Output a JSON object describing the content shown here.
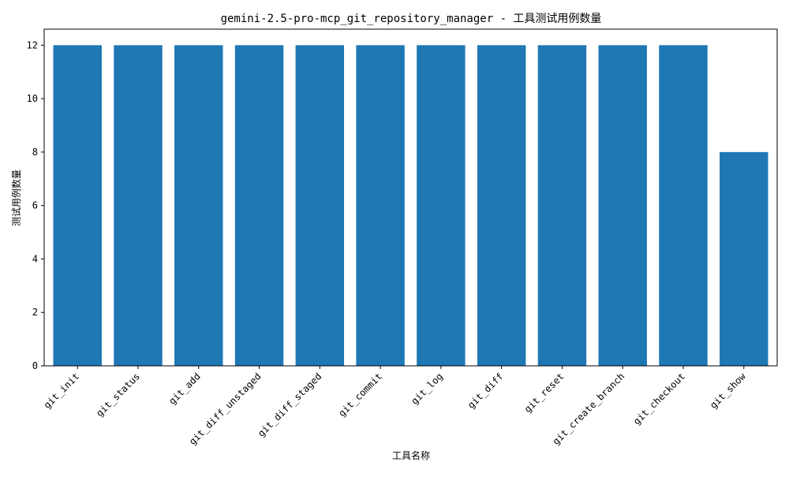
{
  "chart_data": {
    "type": "bar",
    "title": "gemini-2.5-pro-mcp_git_repository_manager - 工具测试用例数量",
    "xlabel": "工具名称",
    "ylabel": "测试用例数量",
    "categories": [
      "git_init",
      "git_status",
      "git_add",
      "git_diff_unstaged",
      "git_diff_staged",
      "git_commit",
      "git_log",
      "git_diff",
      "git_reset",
      "git_create_branch",
      "git_checkout",
      "git_show"
    ],
    "values": [
      12,
      12,
      12,
      12,
      12,
      12,
      12,
      12,
      12,
      12,
      12,
      8
    ],
    "ylim": [
      0,
      12.6
    ],
    "yticks": [
      0,
      2,
      4,
      6,
      8,
      10,
      12
    ],
    "grid": false,
    "legend": "none",
    "bar_color": "#1f77b4"
  }
}
